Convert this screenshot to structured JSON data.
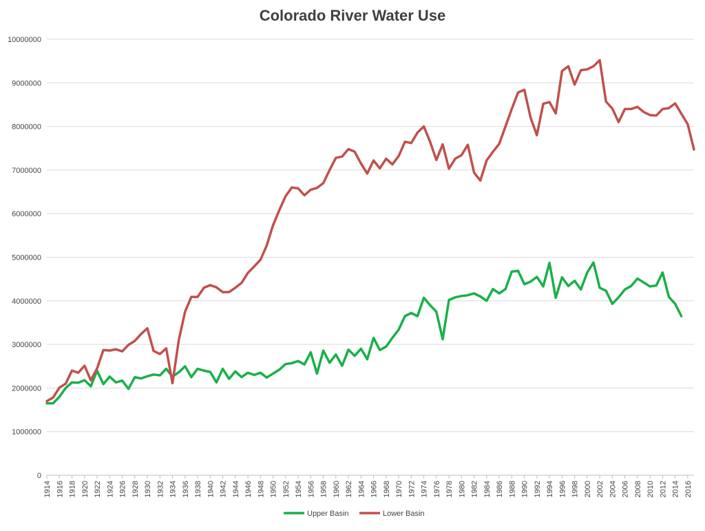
{
  "chart_data": {
    "type": "line",
    "title": "Colorado River Water Use",
    "xlabel": "",
    "ylabel": "",
    "grid": "horizontal",
    "legend": "bottom-center",
    "ylim": [
      0,
      10000000
    ],
    "yticks": [
      "0",
      "1000000",
      "2000000",
      "3000000",
      "4000000",
      "5000000",
      "6000000",
      "7000000",
      "8000000",
      "9000000",
      "10000000"
    ],
    "xlim": [
      1914,
      2017
    ],
    "xticks": [
      "1914",
      "1916",
      "1918",
      "1920",
      "1922",
      "1924",
      "1926",
      "1928",
      "1930",
      "1932",
      "1934",
      "1936",
      "1938",
      "1940",
      "1942",
      "1944",
      "1946",
      "1948",
      "1950",
      "1952",
      "1954",
      "1956",
      "1958",
      "1960",
      "1962",
      "1964",
      "1966",
      "1968",
      "1970",
      "1972",
      "1974",
      "1976",
      "1978",
      "1980",
      "1982",
      "1984",
      "1986",
      "1988",
      "1990",
      "1992",
      "1994",
      "1996",
      "1998",
      "2000",
      "2002",
      "2004",
      "2006",
      "2008",
      "2010",
      "2012",
      "2014",
      "2016"
    ],
    "series": [
      {
        "name": "Upper Basin",
        "color": "#1aaf4b",
        "points": [
          [
            1914,
            1650000
          ],
          [
            1915,
            1650000
          ],
          [
            1916,
            1800000
          ],
          [
            1917,
            2000000
          ],
          [
            1918,
            2130000
          ],
          [
            1919,
            2120000
          ],
          [
            1920,
            2180000
          ],
          [
            1921,
            2040000
          ],
          [
            1922,
            2400000
          ],
          [
            1923,
            2090000
          ],
          [
            1924,
            2260000
          ],
          [
            1925,
            2130000
          ],
          [
            1926,
            2170000
          ],
          [
            1927,
            1980000
          ],
          [
            1928,
            2250000
          ],
          [
            1929,
            2220000
          ],
          [
            1930,
            2270000
          ],
          [
            1931,
            2310000
          ],
          [
            1932,
            2290000
          ],
          [
            1933,
            2440000
          ],
          [
            1934,
            2260000
          ],
          [
            1935,
            2360000
          ],
          [
            1936,
            2500000
          ],
          [
            1937,
            2250000
          ],
          [
            1938,
            2440000
          ],
          [
            1939,
            2400000
          ],
          [
            1940,
            2370000
          ],
          [
            1941,
            2130000
          ],
          [
            1942,
            2440000
          ],
          [
            1943,
            2210000
          ],
          [
            1944,
            2380000
          ],
          [
            1945,
            2250000
          ],
          [
            1946,
            2350000
          ],
          [
            1947,
            2300000
          ],
          [
            1948,
            2350000
          ],
          [
            1949,
            2240000
          ],
          [
            1950,
            2330000
          ],
          [
            1951,
            2420000
          ],
          [
            1952,
            2550000
          ],
          [
            1953,
            2570000
          ],
          [
            1954,
            2620000
          ],
          [
            1955,
            2540000
          ],
          [
            1956,
            2820000
          ],
          [
            1957,
            2330000
          ],
          [
            1958,
            2860000
          ],
          [
            1959,
            2580000
          ],
          [
            1960,
            2770000
          ],
          [
            1961,
            2510000
          ],
          [
            1962,
            2880000
          ],
          [
            1963,
            2740000
          ],
          [
            1964,
            2900000
          ],
          [
            1965,
            2660000
          ],
          [
            1966,
            3150000
          ],
          [
            1967,
            2870000
          ],
          [
            1968,
            2950000
          ],
          [
            1969,
            3150000
          ],
          [
            1970,
            3340000
          ],
          [
            1971,
            3650000
          ],
          [
            1972,
            3720000
          ],
          [
            1973,
            3650000
          ],
          [
            1974,
            4070000
          ],
          [
            1975,
            3900000
          ],
          [
            1976,
            3750000
          ],
          [
            1977,
            3120000
          ],
          [
            1978,
            4020000
          ],
          [
            1979,
            4080000
          ],
          [
            1980,
            4110000
          ],
          [
            1981,
            4130000
          ],
          [
            1982,
            4170000
          ],
          [
            1983,
            4100000
          ],
          [
            1984,
            4000000
          ],
          [
            1985,
            4270000
          ],
          [
            1986,
            4170000
          ],
          [
            1987,
            4270000
          ],
          [
            1988,
            4670000
          ],
          [
            1989,
            4690000
          ],
          [
            1990,
            4380000
          ],
          [
            1991,
            4440000
          ],
          [
            1992,
            4550000
          ],
          [
            1993,
            4330000
          ],
          [
            1994,
            4870000
          ],
          [
            1995,
            4070000
          ],
          [
            1996,
            4540000
          ],
          [
            1997,
            4340000
          ],
          [
            1998,
            4460000
          ],
          [
            1999,
            4260000
          ],
          [
            2000,
            4650000
          ],
          [
            2001,
            4880000
          ],
          [
            2002,
            4300000
          ],
          [
            2003,
            4230000
          ],
          [
            2004,
            3930000
          ],
          [
            2005,
            4080000
          ],
          [
            2006,
            4260000
          ],
          [
            2007,
            4340000
          ],
          [
            2008,
            4510000
          ],
          [
            2009,
            4420000
          ],
          [
            2010,
            4330000
          ],
          [
            2011,
            4350000
          ],
          [
            2012,
            4650000
          ],
          [
            2013,
            4090000
          ],
          [
            2014,
            3930000
          ],
          [
            2015,
            3650000
          ]
        ]
      },
      {
        "name": "Lower Basin",
        "color": "#c0504d",
        "points": [
          [
            1914,
            1700000
          ],
          [
            1915,
            1780000
          ],
          [
            1916,
            2010000
          ],
          [
            1917,
            2100000
          ],
          [
            1918,
            2400000
          ],
          [
            1919,
            2350000
          ],
          [
            1920,
            2510000
          ],
          [
            1921,
            2180000
          ],
          [
            1922,
            2450000
          ],
          [
            1923,
            2870000
          ],
          [
            1924,
            2860000
          ],
          [
            1925,
            2890000
          ],
          [
            1926,
            2840000
          ],
          [
            1927,
            2990000
          ],
          [
            1928,
            3080000
          ],
          [
            1929,
            3240000
          ],
          [
            1930,
            3370000
          ],
          [
            1931,
            2850000
          ],
          [
            1932,
            2780000
          ],
          [
            1933,
            2910000
          ],
          [
            1934,
            2110000
          ],
          [
            1935,
            3100000
          ],
          [
            1936,
            3750000
          ],
          [
            1937,
            4090000
          ],
          [
            1938,
            4090000
          ],
          [
            1939,
            4300000
          ],
          [
            1940,
            4360000
          ],
          [
            1941,
            4310000
          ],
          [
            1942,
            4200000
          ],
          [
            1943,
            4200000
          ],
          [
            1944,
            4300000
          ],
          [
            1945,
            4410000
          ],
          [
            1946,
            4640000
          ],
          [
            1947,
            4790000
          ],
          [
            1948,
            4940000
          ],
          [
            1949,
            5270000
          ],
          [
            1950,
            5730000
          ],
          [
            1951,
            6080000
          ],
          [
            1952,
            6400000
          ],
          [
            1953,
            6600000
          ],
          [
            1954,
            6580000
          ],
          [
            1955,
            6420000
          ],
          [
            1956,
            6550000
          ],
          [
            1957,
            6590000
          ],
          [
            1958,
            6700000
          ],
          [
            1959,
            7000000
          ],
          [
            1960,
            7280000
          ],
          [
            1961,
            7310000
          ],
          [
            1962,
            7480000
          ],
          [
            1963,
            7420000
          ],
          [
            1964,
            7150000
          ],
          [
            1965,
            6920000
          ],
          [
            1966,
            7220000
          ],
          [
            1967,
            7040000
          ],
          [
            1968,
            7260000
          ],
          [
            1969,
            7130000
          ],
          [
            1970,
            7320000
          ],
          [
            1971,
            7650000
          ],
          [
            1972,
            7620000
          ],
          [
            1973,
            7860000
          ],
          [
            1974,
            8000000
          ],
          [
            1975,
            7650000
          ],
          [
            1976,
            7230000
          ],
          [
            1977,
            7590000
          ],
          [
            1978,
            7030000
          ],
          [
            1979,
            7260000
          ],
          [
            1980,
            7340000
          ],
          [
            1981,
            7580000
          ],
          [
            1982,
            6940000
          ],
          [
            1983,
            6760000
          ],
          [
            1984,
            7220000
          ],
          [
            1985,
            7420000
          ],
          [
            1986,
            7600000
          ],
          [
            1987,
            8000000
          ],
          [
            1988,
            8400000
          ],
          [
            1989,
            8780000
          ],
          [
            1990,
            8840000
          ],
          [
            1991,
            8200000
          ],
          [
            1992,
            7800000
          ],
          [
            1993,
            8520000
          ],
          [
            1994,
            8560000
          ],
          [
            1995,
            8300000
          ],
          [
            1996,
            9270000
          ],
          [
            1997,
            9380000
          ],
          [
            1998,
            8960000
          ],
          [
            1999,
            9290000
          ],
          [
            2000,
            9310000
          ],
          [
            2001,
            9380000
          ],
          [
            2002,
            9520000
          ],
          [
            2003,
            8570000
          ],
          [
            2004,
            8410000
          ],
          [
            2005,
            8100000
          ],
          [
            2006,
            8400000
          ],
          [
            2007,
            8400000
          ],
          [
            2008,
            8450000
          ],
          [
            2009,
            8330000
          ],
          [
            2010,
            8260000
          ],
          [
            2011,
            8250000
          ],
          [
            2012,
            8400000
          ],
          [
            2013,
            8420000
          ],
          [
            2014,
            8530000
          ],
          [
            2015,
            8290000
          ],
          [
            2016,
            8050000
          ],
          [
            2017,
            7470000
          ]
        ]
      }
    ]
  }
}
